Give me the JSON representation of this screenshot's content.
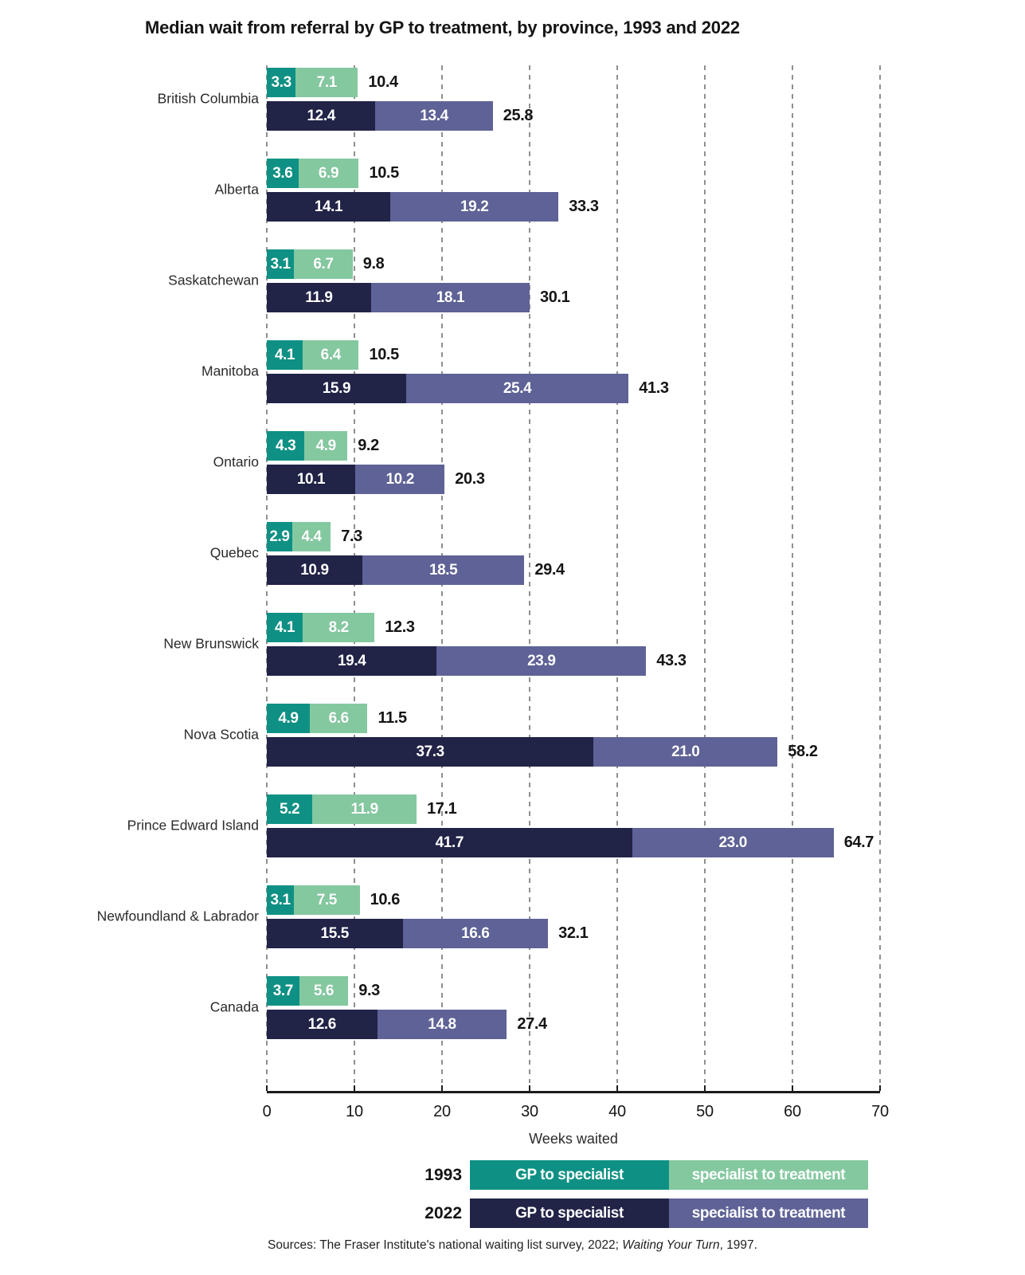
{
  "title": "Median wait from referral by GP to treatment, by province, 1993 and 2022",
  "colors": {
    "gp_1993": "#0e9184",
    "spec_1993": "#84c8a0",
    "gp_2022": "#212347",
    "spec_2022": "#5e6296",
    "gridline": "#8f8f8f",
    "axis": "#1c1c1c"
  },
  "axis": {
    "label": "Weeks waited",
    "max": 70,
    "ticks": [
      "0",
      "10",
      "20",
      "30",
      "40",
      "50",
      "60",
      "70"
    ]
  },
  "legend": {
    "rows": [
      {
        "year": "1993",
        "gp_label": "GP to specialist",
        "spec_label": "specialist to treatment"
      },
      {
        "year": "2022",
        "gp_label": "GP to specialist",
        "spec_label": "specialist to treatment"
      }
    ]
  },
  "source": {
    "prefix": "Sources: The Fraser Institute's national waiting list survey, 2022; ",
    "italic": "Waiting Your Turn",
    "suffix": ", 1997."
  },
  "provinces": [
    {
      "label": "British Columbia",
      "y1993": {
        "gp": "3.3",
        "spec": "7.1",
        "total": "10.4"
      },
      "y2022": {
        "gp": "12.4",
        "spec": "13.4",
        "total": "25.8"
      }
    },
    {
      "label": "Alberta",
      "y1993": {
        "gp": "3.6",
        "spec": "6.9",
        "total": "10.5"
      },
      "y2022": {
        "gp": "14.1",
        "spec": "19.2",
        "total": "33.3"
      }
    },
    {
      "label": "Saskatchewan",
      "y1993": {
        "gp": "3.1",
        "spec": "6.7",
        "total": "9.8"
      },
      "y2022": {
        "gp": "11.9",
        "spec": "18.1",
        "total": "30.1"
      }
    },
    {
      "label": "Manitoba",
      "y1993": {
        "gp": "4.1",
        "spec": "6.4",
        "total": "10.5"
      },
      "y2022": {
        "gp": "15.9",
        "spec": "25.4",
        "total": "41.3"
      }
    },
    {
      "label": "Ontario",
      "y1993": {
        "gp": "4.3",
        "spec": "4.9",
        "total": "9.2"
      },
      "y2022": {
        "gp": "10.1",
        "spec": "10.2",
        "total": "20.3"
      }
    },
    {
      "label": "Quebec",
      "y1993": {
        "gp": "2.9",
        "spec": "4.4",
        "total": "7.3"
      },
      "y2022": {
        "gp": "10.9",
        "spec": "18.5",
        "total": "29.4"
      }
    },
    {
      "label": "New Brunswick",
      "y1993": {
        "gp": "4.1",
        "spec": "8.2",
        "total": "12.3"
      },
      "y2022": {
        "gp": "19.4",
        "spec": "23.9",
        "total": "43.3"
      }
    },
    {
      "label": "Nova Scotia",
      "y1993": {
        "gp": "4.9",
        "spec": "6.6",
        "total": "11.5"
      },
      "y2022": {
        "gp": "37.3",
        "spec": "21.0",
        "total": "58.2"
      }
    },
    {
      "label": "Prince Edward Island",
      "y1993": {
        "gp": "5.2",
        "spec": "11.9",
        "total": "17.1"
      },
      "y2022": {
        "gp": "41.7",
        "spec": "23.0",
        "total": "64.7"
      }
    },
    {
      "label": "Newfoundland & Labrador",
      "y1993": {
        "gp": "3.1",
        "spec": "7.5",
        "total": "10.6"
      },
      "y2022": {
        "gp": "15.5",
        "spec": "16.6",
        "total": "32.1"
      }
    },
    {
      "label": "Canada",
      "y1993": {
        "gp": "3.7",
        "spec": "5.6",
        "total": "9.3"
      },
      "y2022": {
        "gp": "12.6",
        "spec": "14.8",
        "total": "27.4"
      }
    }
  ],
  "chart_data": {
    "type": "bar",
    "orientation": "horizontal",
    "stacked": true,
    "title": "Median wait from referral by GP to treatment, by province, 1993 and 2022",
    "xlabel": "Weeks waited",
    "xlim": [
      0,
      70
    ],
    "grid": "dashed-vertical",
    "legend_position": "bottom",
    "categories": [
      "British Columbia",
      "Alberta",
      "Saskatchewan",
      "Manitoba",
      "Ontario",
      "Quebec",
      "New Brunswick",
      "Nova Scotia",
      "Prince Edward Island",
      "Newfoundland & Labrador",
      "Canada"
    ],
    "series": [
      {
        "name": "1993 GP to specialist",
        "values": [
          3.3,
          3.6,
          3.1,
          4.1,
          4.3,
          2.9,
          4.1,
          4.9,
          5.2,
          3.1,
          3.7
        ]
      },
      {
        "name": "1993 specialist to treatment",
        "values": [
          7.1,
          6.9,
          6.7,
          6.4,
          4.9,
          4.4,
          8.2,
          6.6,
          11.9,
          7.5,
          5.6
        ]
      },
      {
        "name": "2022 GP to specialist",
        "values": [
          12.4,
          14.1,
          11.9,
          15.9,
          10.1,
          10.9,
          19.4,
          37.3,
          41.7,
          15.5,
          12.6
        ]
      },
      {
        "name": "2022 specialist to treatment",
        "values": [
          13.4,
          19.2,
          18.1,
          25.4,
          10.2,
          18.5,
          23.9,
          21.0,
          23.0,
          16.6,
          14.8
        ]
      }
    ],
    "totals_1993": [
      10.4,
      10.5,
      9.8,
      10.5,
      9.2,
      7.3,
      12.3,
      11.5,
      17.1,
      10.6,
      9.3
    ],
    "totals_2022": [
      25.8,
      33.3,
      30.1,
      41.3,
      20.3,
      29.4,
      43.3,
      58.2,
      64.7,
      32.1,
      27.4
    ]
  }
}
